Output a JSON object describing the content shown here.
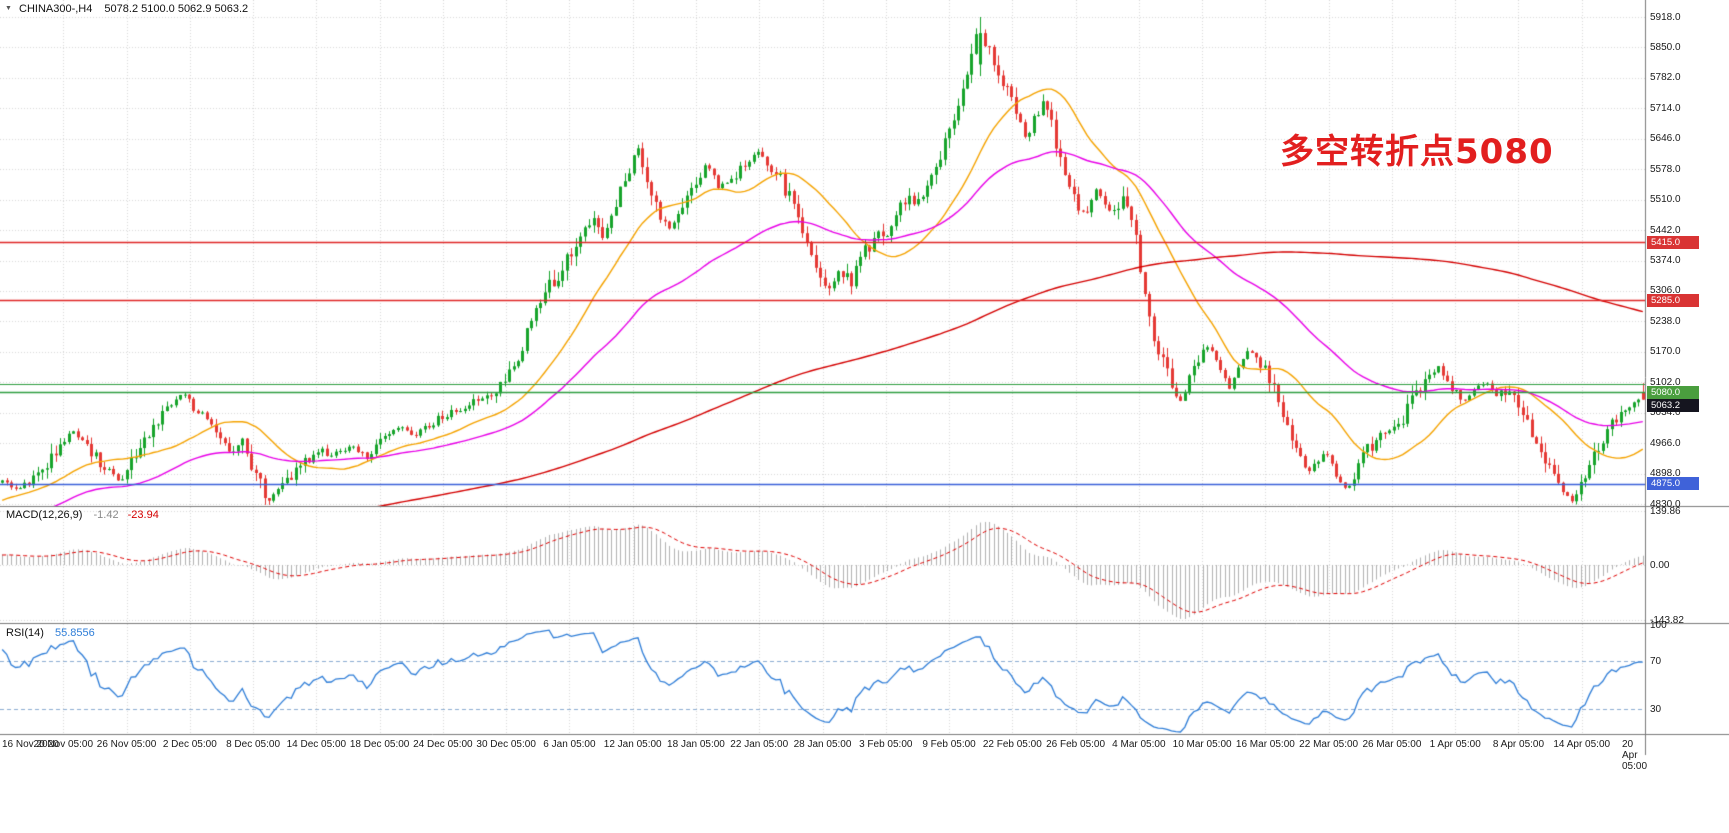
{
  "header": {
    "marker": "▼",
    "symbol": "CHINA300-,H4",
    "ohlc": "5078.2 5100.0 5062.9 5063.2"
  },
  "annotation": {
    "text": "多空转折点5080",
    "color": "#e21f1f"
  },
  "price_axis": {
    "ticks": [
      5918,
      5850,
      5782,
      5714,
      5646,
      5578,
      5510,
      5442,
      5374,
      5306,
      5238,
      5170,
      5102,
      5034,
      4966,
      4898,
      4830
    ],
    "decimals": 1
  },
  "time_axis": {
    "labels": [
      "16 Nov 2020",
      "20 Nov 05:00",
      "26 Nov 05:00",
      "2 Dec 05:00",
      "8 Dec 05:00",
      "14 Dec 05:00",
      "18 Dec 05:00",
      "24 Dec 05:00",
      "30 Dec 05:00",
      "6 Jan 05:00",
      "12 Jan 05:00",
      "18 Jan 05:00",
      "22 Jan 05:00",
      "28 Jan 05:00",
      "3 Feb 05:00",
      "9 Feb 05:00",
      "22 Feb 05:00",
      "26 Feb 05:00",
      "4 Mar 05:00",
      "10 Mar 05:00",
      "16 Mar 05:00",
      "22 Mar 05:00",
      "26 Mar 05:00",
      "1 Apr 05:00",
      "8 Apr 05:00",
      "14 Apr 05:00",
      "20 Apr 05:00"
    ]
  },
  "macd": {
    "name": "MACD(12,26,9)",
    "main_value": "-1.42",
    "signal_value": "-23.94",
    "axis_labels": [
      "139.86",
      "0.00",
      "-143.82"
    ],
    "axis_values": [
      139.86,
      0,
      -143.82
    ],
    "histogram_color": "#b2b2b2",
    "signal_color": "#e00000"
  },
  "rsi": {
    "name": "RSI(14)",
    "value": "55.8556",
    "axis_labels": [
      "100",
      "70",
      "30"
    ],
    "axis_values": [
      100,
      70,
      30
    ],
    "levels": [
      70,
      30
    ],
    "color": "#2f7ed8",
    "level_color": "#8cadd2"
  },
  "chart_data": {
    "type": "candlestick",
    "symbol": "CHINA300-",
    "timeframe": "H4",
    "title_annotation": "多空转折点5080",
    "last": {
      "open": 5078.2,
      "high": 5100.0,
      "low": 5062.9,
      "close": 5063.2
    },
    "visible_bars": 370,
    "warmup_bars": 220,
    "seed": 11,
    "price_min_clamp": 4828,
    "price_max_clamp": 5905,
    "spike": {
      "f": 0.597,
      "open": 5812,
      "close": 5882,
      "high": 5918,
      "low": 5786
    },
    "volatility": {
      "base": 12,
      "slope_coeff": 0.3,
      "cap": 45
    },
    "macd_periods": {
      "fast": 12,
      "slow": 26,
      "signal": 9
    },
    "rsi_period": 14,
    "path_anchors": [
      [
        -0.6,
        4480
      ],
      [
        -0.5,
        4570
      ],
      [
        -0.4,
        4640
      ],
      [
        -0.32,
        4600
      ],
      [
        -0.24,
        4690
      ],
      [
        -0.17,
        4755
      ],
      [
        -0.11,
        4720
      ],
      [
        -0.05,
        4805
      ],
      [
        -0.01,
        4868
      ],
      [
        0,
        4885
      ],
      [
        0.01,
        4858
      ],
      [
        0.022,
        4900
      ],
      [
        0.032,
        4940
      ],
      [
        0.042,
        4995
      ],
      [
        0.052,
        4950
      ],
      [
        0.062,
        4915
      ],
      [
        0.072,
        4880
      ],
      [
        0.082,
        4945
      ],
      [
        0.092,
        5000
      ],
      [
        0.102,
        5045
      ],
      [
        0.11,
        5085
      ],
      [
        0.118,
        5040
      ],
      [
        0.128,
        4990
      ],
      [
        0.138,
        4950
      ],
      [
        0.146,
        4975
      ],
      [
        0.152,
        4915
      ],
      [
        0.162,
        4840
      ],
      [
        0.172,
        4875
      ],
      [
        0.182,
        4915
      ],
      [
        0.192,
        4950
      ],
      [
        0.202,
        4940
      ],
      [
        0.212,
        4960
      ],
      [
        0.222,
        4935
      ],
      [
        0.232,
        4975
      ],
      [
        0.242,
        5000
      ],
      [
        0.252,
        4985
      ],
      [
        0.262,
        5010
      ],
      [
        0.272,
        5030
      ],
      [
        0.282,
        5050
      ],
      [
        0.292,
        5065
      ],
      [
        0.302,
        5080
      ],
      [
        0.312,
        5140
      ],
      [
        0.322,
        5230
      ],
      [
        0.332,
        5310
      ],
      [
        0.342,
        5360
      ],
      [
        0.352,
        5430
      ],
      [
        0.36,
        5465
      ],
      [
        0.366,
        5425
      ],
      [
        0.374,
        5500
      ],
      [
        0.381,
        5570
      ],
      [
        0.387,
        5625
      ],
      [
        0.393,
        5560
      ],
      [
        0.4,
        5480
      ],
      [
        0.407,
        5445
      ],
      [
        0.414,
        5495
      ],
      [
        0.422,
        5545
      ],
      [
        0.43,
        5590
      ],
      [
        0.437,
        5535
      ],
      [
        0.444,
        5560
      ],
      [
        0.452,
        5580
      ],
      [
        0.46,
        5615
      ],
      [
        0.467,
        5590
      ],
      [
        0.474,
        5555
      ],
      [
        0.482,
        5500
      ],
      [
        0.49,
        5430
      ],
      [
        0.497,
        5350
      ],
      [
        0.503,
        5295
      ],
      [
        0.51,
        5360
      ],
      [
        0.517,
        5320
      ],
      [
        0.524,
        5390
      ],
      [
        0.531,
        5420
      ],
      [
        0.538,
        5435
      ],
      [
        0.545,
        5480
      ],
      [
        0.552,
        5520
      ],
      [
        0.558,
        5495
      ],
      [
        0.565,
        5545
      ],
      [
        0.572,
        5610
      ],
      [
        0.578,
        5680
      ],
      [
        0.584,
        5750
      ],
      [
        0.59,
        5830
      ],
      [
        0.595,
        5885
      ],
      [
        0.601,
        5845
      ],
      [
        0.607,
        5795
      ],
      [
        0.613,
        5750
      ],
      [
        0.618,
        5700
      ],
      [
        0.624,
        5650
      ],
      [
        0.63,
        5700
      ],
      [
        0.636,
        5725
      ],
      [
        0.642,
        5640
      ],
      [
        0.648,
        5560
      ],
      [
        0.654,
        5500
      ],
      [
        0.66,
        5480
      ],
      [
        0.666,
        5530
      ],
      [
        0.672,
        5505
      ],
      [
        0.678,
        5475
      ],
      [
        0.684,
        5510
      ],
      [
        0.69,
        5440
      ],
      [
        0.695,
        5330
      ],
      [
        0.7,
        5230
      ],
      [
        0.706,
        5160
      ],
      [
        0.712,
        5100
      ],
      [
        0.718,
        5060
      ],
      [
        0.724,
        5110
      ],
      [
        0.73,
        5160
      ],
      [
        0.736,
        5185
      ],
      [
        0.742,
        5135
      ],
      [
        0.748,
        5090
      ],
      [
        0.754,
        5140
      ],
      [
        0.76,
        5175
      ],
      [
        0.766,
        5145
      ],
      [
        0.772,
        5110
      ],
      [
        0.778,
        5060
      ],
      [
        0.784,
        4990
      ],
      [
        0.79,
        4930
      ],
      [
        0.796,
        4895
      ],
      [
        0.802,
        4930
      ],
      [
        0.808,
        4945
      ],
      [
        0.814,
        4880
      ],
      [
        0.82,
        4865
      ],
      [
        0.827,
        4920
      ],
      [
        0.834,
        4960
      ],
      [
        0.841,
        4990
      ],
      [
        0.848,
        5000
      ],
      [
        0.855,
        5030
      ],
      [
        0.862,
        5080
      ],
      [
        0.869,
        5120
      ],
      [
        0.876,
        5135
      ],
      [
        0.883,
        5090
      ],
      [
        0.89,
        5060
      ],
      [
        0.897,
        5085
      ],
      [
        0.904,
        5100
      ],
      [
        0.91,
        5070
      ],
      [
        0.916,
        5085
      ],
      [
        0.923,
        5060
      ],
      [
        0.929,
        5020
      ],
      [
        0.935,
        4970
      ],
      [
        0.941,
        4930
      ],
      [
        0.947,
        4880
      ],
      [
        0.953,
        4845
      ],
      [
        0.958,
        4832
      ],
      [
        0.963,
        4880
      ],
      [
        0.969,
        4925
      ],
      [
        0.975,
        4965
      ],
      [
        0.981,
        5005
      ],
      [
        0.987,
        5040
      ],
      [
        0.993,
        5055
      ],
      [
        1,
        5063
      ]
    ],
    "moving_averages": [
      {
        "period": 22,
        "type": "sma",
        "color": "#f5a300"
      },
      {
        "period": 60,
        "type": "ema",
        "color": "#e800e8"
      },
      {
        "period": 200,
        "type": "sma",
        "color": "#d40000"
      }
    ],
    "levels": [
      {
        "value": 5415,
        "color": "#e02626",
        "width": 1.4
      },
      {
        "value": 5285,
        "color": "#e02626",
        "width": 1.4
      },
      {
        "value": 5097,
        "color": "#2f9e41",
        "width": 1.2
      },
      {
        "value": 5080,
        "color": "#2f9e41",
        "width": 1.6
      },
      {
        "value": 4875,
        "color": "#3a5fd9",
        "width": 1.6
      }
    ],
    "badges": [
      {
        "value": 5415,
        "label": "5415.0",
        "bg": "#d93434"
      },
      {
        "value": 5285,
        "label": "5285.0",
        "bg": "#d93434"
      },
      {
        "value": 5080,
        "label": "5080.0",
        "bg": "#4a9e3e"
      },
      {
        "value": 5063.2,
        "label": "5063.2",
        "bg": "#15151f"
      },
      {
        "value": 4875,
        "label": "4875.0",
        "bg": "#3f62d9"
      }
    ],
    "colors": {
      "up": "#17a42b",
      "down": "#e53935",
      "grid": "#d8d8d8",
      "separator": "#7a7a7a",
      "background": "#ffffff"
    }
  }
}
